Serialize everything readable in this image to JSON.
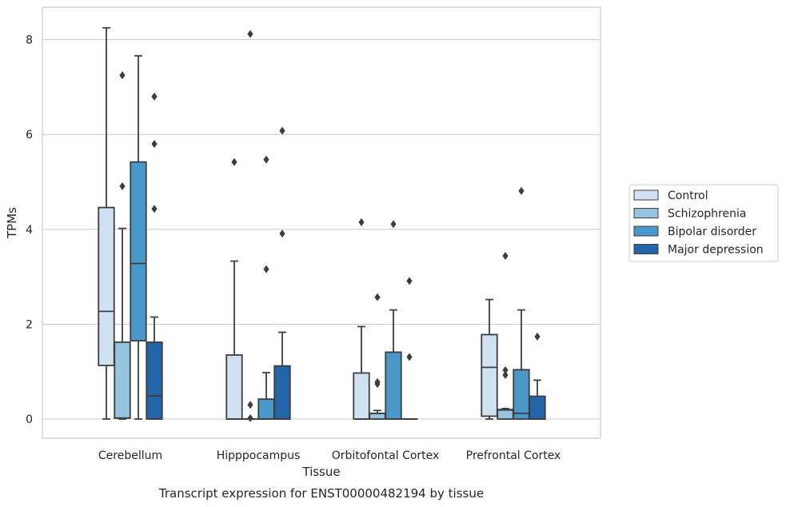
{
  "chart_data": {
    "type": "box",
    "xlabel": "Tissue",
    "ylabel": "TPMs",
    "caption": "Transcript expression for ENST00000482194 by tissue",
    "ylim": [
      -0.4,
      8.7
    ],
    "yticks": [
      0,
      2,
      4,
      6,
      8
    ],
    "grid": true,
    "legend_position": "right",
    "categories": [
      "Cerebellum",
      "Hipppocampus",
      "Orbitofontal Cortex",
      "Prefrontal Cortex"
    ],
    "series": [
      {
        "name": "Control",
        "color": "#d0e1f2",
        "boxes": [
          {
            "whislo": 0,
            "q1": 1.13,
            "med": 2.27,
            "q3": 4.46,
            "whishi": 8.25,
            "fliers": []
          },
          {
            "whislo": 0,
            "q1": 0,
            "med": 0,
            "q3": 1.35,
            "whishi": 3.33,
            "fliers": [
              5.42
            ]
          },
          {
            "whislo": 0,
            "q1": 0,
            "med": 0,
            "q3": 0.97,
            "whishi": 1.95,
            "fliers": [
              4.15
            ]
          },
          {
            "whislo": 0,
            "q1": 0.06,
            "med": 1.09,
            "q3": 1.78,
            "whishi": 2.52,
            "fliers": []
          }
        ]
      },
      {
        "name": "Schizophrenia",
        "color": "#94c4df",
        "boxes": [
          {
            "whislo": 0,
            "q1": 0.02,
            "med": 0.02,
            "q3": 1.62,
            "whishi": 4.02,
            "fliers": [
              4.91,
              7.25
            ]
          },
          {
            "whislo": 0,
            "q1": 0,
            "med": 0,
            "q3": 0,
            "whishi": 0,
            "fliers": [
              0.3,
              0.02,
              8.12
            ]
          },
          {
            "whislo": 0,
            "q1": 0,
            "med": 0.12,
            "q3": 0.12,
            "whishi": 0.18,
            "fliers": [
              0.74,
              0.78,
              2.57
            ]
          },
          {
            "whislo": 0,
            "q1": 0,
            "med": 0.19,
            "q3": 0.2,
            "whishi": 0.22,
            "fliers": [
              0.93,
              1.03,
              3.44
            ]
          }
        ]
      },
      {
        "name": "Bipolar disorder",
        "color": "#4a98c9",
        "boxes": [
          {
            "whislo": 0,
            "q1": 1.65,
            "med": 3.28,
            "q3": 5.42,
            "whishi": 7.66,
            "fliers": []
          },
          {
            "whislo": 0,
            "q1": 0,
            "med": 0,
            "q3": 0.42,
            "whishi": 0.98,
            "fliers": [
              3.16,
              5.47
            ]
          },
          {
            "whislo": 0,
            "q1": 0,
            "med": 0,
            "q3": 1.41,
            "whishi": 2.3,
            "fliers": [
              4.11
            ]
          },
          {
            "whislo": 0,
            "q1": 0,
            "med": 0.12,
            "q3": 1.04,
            "whishi": 2.3,
            "fliers": [
              4.81
            ]
          }
        ]
      },
      {
        "name": "Major depression",
        "color": "#2464a8",
        "boxes": [
          {
            "whislo": 0,
            "q1": 0,
            "med": 0.49,
            "q3": 1.62,
            "whishi": 2.15,
            "fliers": [
              4.43,
              5.8,
              6.8
            ]
          },
          {
            "whislo": 0,
            "q1": 0,
            "med": 0,
            "q3": 1.12,
            "whishi": 1.83,
            "fliers": [
              3.91,
              6.08
            ]
          },
          {
            "whislo": 0,
            "q1": 0,
            "med": 0,
            "q3": 0,
            "whishi": 0,
            "fliers": [
              1.31,
              2.91
            ]
          },
          {
            "whislo": 0,
            "q1": 0,
            "med": 0,
            "q3": 0.48,
            "whishi": 0.82,
            "fliers": [
              1.74
            ]
          }
        ]
      }
    ]
  }
}
